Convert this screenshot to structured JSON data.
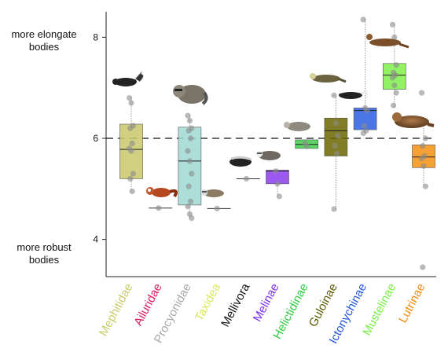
{
  "annotations": {
    "top": "more elongate bodies",
    "bottom": "more robust bodies"
  },
  "chart_data": {
    "type": "box",
    "title": "",
    "xlabel": "",
    "ylabel": "",
    "ylim": [
      3.3,
      8.5
    ],
    "yticks": [
      4,
      6,
      8
    ],
    "reference_line": 6,
    "grid": false,
    "categories": [
      "Mephitidae",
      "Ailuridae",
      "Procyonidae",
      "Taxidea",
      "Mellivora",
      "Melinae",
      "Helictidinae",
      "Guloinae",
      "Ictonychinae",
      "Mustelinae",
      "Lutrinae"
    ],
    "colors": [
      "#c9cc6b",
      "#d81b60",
      "#a9a9a9",
      "#d9e85a",
      "#111111",
      "#7b2ff7",
      "#2ecc40",
      "#5a5a00",
      "#2255dd",
      "#77ee44",
      "#f58a07"
    ],
    "fill_colors": [
      "#c8c86a",
      "#d81b60",
      "#9fd8d4",
      "#d9e85a",
      "#111111",
      "#8a3cf0",
      "#3ecf4a",
      "#6b6600",
      "#2a5fe0",
      "#7fef4a",
      "#f5900f"
    ],
    "boxes": [
      {
        "median": 5.78,
        "q1": 5.2,
        "q3": 6.28,
        "whisker_low": 4.95,
        "whisker_high": 6.82,
        "single": false
      },
      {
        "median": 4.62,
        "single": true
      },
      {
        "median": 5.55,
        "q1": 4.68,
        "q3": 6.22,
        "whisker_low": 4.4,
        "whisker_high": 6.45,
        "single": false
      },
      {
        "median": 4.61,
        "single": true
      },
      {
        "median": 5.2,
        "single": true
      },
      {
        "median": 5.35,
        "q1": 5.1,
        "q3": 5.37,
        "whisker_low": 4.85,
        "whisker_high": 5.4,
        "single": false
      },
      {
        "median": 5.88,
        "q1": 5.8,
        "q3": 5.97,
        "whisker_low": 5.78,
        "whisker_high": 5.98,
        "single": false
      },
      {
        "median": 6.15,
        "q1": 5.65,
        "q3": 6.4,
        "whisker_low": 4.6,
        "whisker_high": 6.85,
        "single": false
      },
      {
        "median": 6.55,
        "q1": 6.17,
        "q3": 6.6,
        "whisker_low": 6.1,
        "whisker_high": 8.35,
        "single": false
      },
      {
        "median": 7.25,
        "q1": 6.97,
        "q3": 7.48,
        "whisker_low": 6.62,
        "whisker_high": 8.25,
        "single": false
      },
      {
        "median": 5.63,
        "q1": 5.42,
        "q3": 5.87,
        "whisker_low": 5.05,
        "whisker_high": 6.3,
        "single": false
      }
    ],
    "points": [
      [
        6.8,
        6.7,
        6.25,
        6.2,
        5.9,
        5.8,
        5.75,
        5.3,
        5.2,
        4.95
      ],
      [
        4.62
      ],
      [
        6.45,
        6.35,
        6.2,
        6.15,
        6.0,
        5.75,
        5.55,
        5.3,
        5.05,
        4.75,
        4.65,
        4.5,
        4.42
      ],
      [
        4.61
      ],
      [
        5.2
      ],
      [
        5.35,
        5.1,
        4.85
      ],
      [
        5.9,
        5.85
      ],
      [
        6.85,
        6.3,
        6.05,
        5.85,
        5.7,
        4.6
      ],
      [
        8.35,
        6.6,
        6.55,
        6.25,
        6.15,
        6.1
      ],
      [
        8.25,
        8.0,
        7.45,
        7.3,
        7.25,
        7.2,
        7.05,
        6.9,
        6.65
      ],
      [
        6.9,
        6.3,
        6.0,
        5.85,
        5.65,
        5.6,
        5.45,
        5.05,
        3.45
      ]
    ]
  }
}
